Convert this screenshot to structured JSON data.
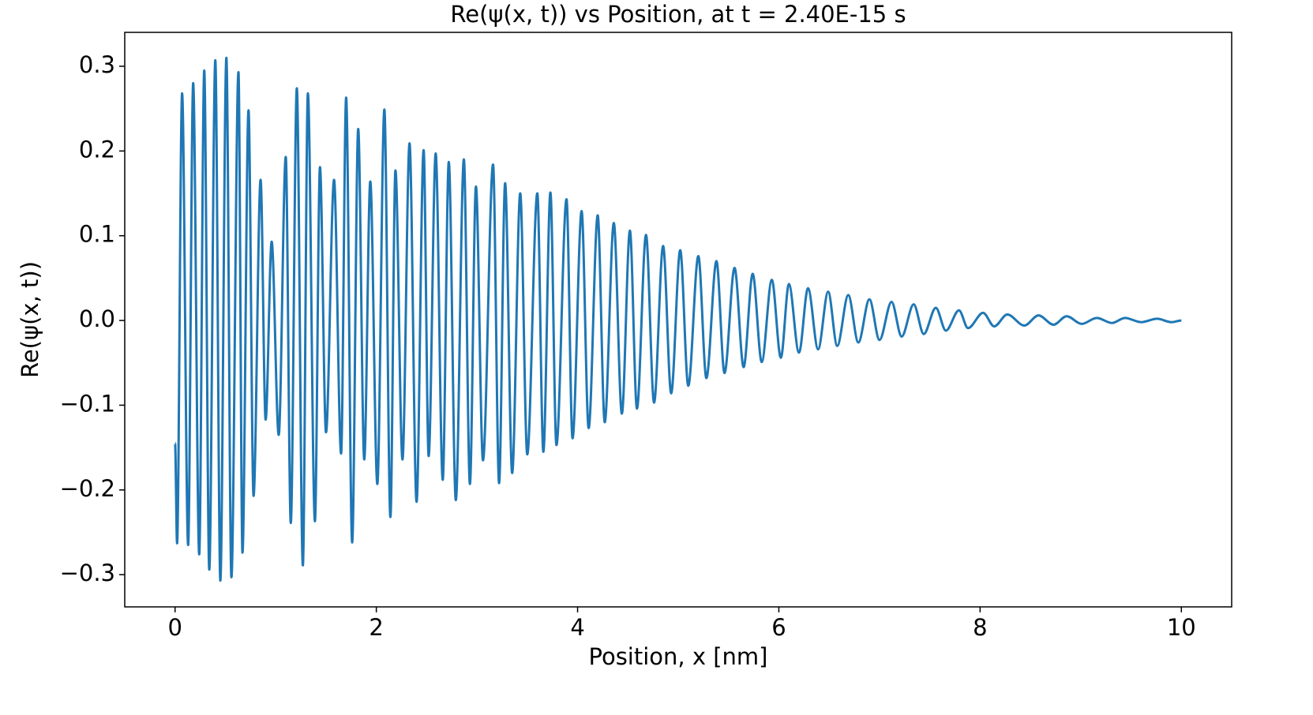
{
  "chart_data": {
    "type": "line",
    "title": "Re(ψ(x, t)) vs Position, at t = 2.40E-15 s",
    "x_label": "Position, x [nm]",
    "y_label": "Re(ψ(x, t))",
    "xlim": [
      -0.5,
      10.5
    ],
    "ylim": [
      -0.338,
      0.34
    ],
    "xticks": [
      0,
      2,
      4,
      6,
      8,
      10
    ],
    "yticks": [
      {
        "value": -0.3,
        "label": "−0.3"
      },
      {
        "value": -0.2,
        "label": "−0.2"
      },
      {
        "value": -0.1,
        "label": "−0.1"
      },
      {
        "value": 0,
        "label": "0.0"
      },
      0.1,
      0.2,
      0.3
    ],
    "series": [
      {
        "color": "#1f77b4",
        "x": [
          0,
          0.02,
          0.07,
          0.13,
          0.18,
          0.24,
          0.29,
          0.34,
          0.4,
          0.45,
          0.51,
          0.56,
          0.63,
          0.67,
          0.73,
          0.78,
          0.85,
          0.9,
          0.96,
          1.03,
          1.1,
          1.15,
          1.21,
          1.27,
          1.32,
          1.39,
          1.44,
          1.5,
          1.58,
          1.65,
          1.7,
          1.76,
          1.82,
          1.88,
          1.94,
          2.01,
          2.08,
          2.14,
          2.19,
          2.26,
          2.33,
          2.4,
          2.47,
          2.52,
          2.59,
          2.66,
          2.72,
          2.79,
          2.87,
          2.93,
          2.99,
          3.06,
          3.16,
          3.22,
          3.28,
          3.35,
          3.43,
          3.5,
          3.6,
          3.66,
          3.73,
          3.79,
          3.89,
          3.95,
          4.04,
          4.11,
          4.2,
          4.27,
          4.36,
          4.44,
          4.52,
          4.59,
          4.68,
          4.76,
          4.85,
          4.93,
          5.02,
          5.1,
          5.2,
          5.28,
          5.38,
          5.46,
          5.56,
          5.65,
          5.74,
          5.83,
          5.93,
          6.02,
          6.1,
          6.2,
          6.29,
          6.39,
          6.49,
          6.58,
          6.69,
          6.79,
          6.9,
          7.0,
          7.12,
          7.22,
          7.34,
          7.44,
          7.56,
          7.66,
          7.79,
          7.88,
          8.03,
          8.14,
          8.27,
          8.44,
          8.58,
          8.73,
          8.86,
          9.01,
          9.16,
          9.31,
          9.44,
          9.6,
          9.76,
          9.9,
          10.0
        ],
        "values": [
          -0.145,
          -0.263,
          0.268,
          -0.265,
          0.28,
          -0.276,
          0.295,
          -0.294,
          0.307,
          -0.307,
          0.31,
          -0.303,
          0.293,
          -0.274,
          0.248,
          -0.207,
          0.166,
          -0.117,
          0.093,
          -0.135,
          0.193,
          -0.239,
          0.274,
          -0.289,
          0.268,
          -0.237,
          0.181,
          -0.132,
          0.166,
          -0.157,
          0.263,
          -0.262,
          0.226,
          -0.164,
          0.164,
          -0.193,
          0.249,
          -0.232,
          0.177,
          -0.164,
          0.209,
          -0.214,
          0.201,
          -0.16,
          0.197,
          -0.188,
          0.187,
          -0.212,
          0.19,
          -0.193,
          0.158,
          -0.165,
          0.184,
          -0.192,
          0.162,
          -0.18,
          0.15,
          -0.158,
          0.15,
          -0.155,
          0.151,
          -0.147,
          0.143,
          -0.139,
          0.129,
          -0.127,
          0.124,
          -0.12,
          0.115,
          -0.11,
          0.106,
          -0.104,
          0.101,
          -0.097,
          0.088,
          -0.086,
          0.083,
          -0.077,
          0.076,
          -0.068,
          0.07,
          -0.062,
          0.062,
          -0.055,
          0.055,
          -0.049,
          0.048,
          -0.044,
          0.043,
          -0.038,
          0.038,
          -0.034,
          0.034,
          -0.03,
          0.03,
          -0.026,
          0.025,
          -0.023,
          0.022,
          -0.019,
          0.019,
          -0.016,
          0.015,
          -0.012,
          0.012,
          -0.009,
          0.009,
          -0.007,
          0.007,
          -0.006,
          0.006,
          -0.005,
          0.005,
          -0.004,
          0.003,
          -0.003,
          0.003,
          -0.002,
          0.002,
          -0.002,
          0.0
        ]
      }
    ]
  }
}
